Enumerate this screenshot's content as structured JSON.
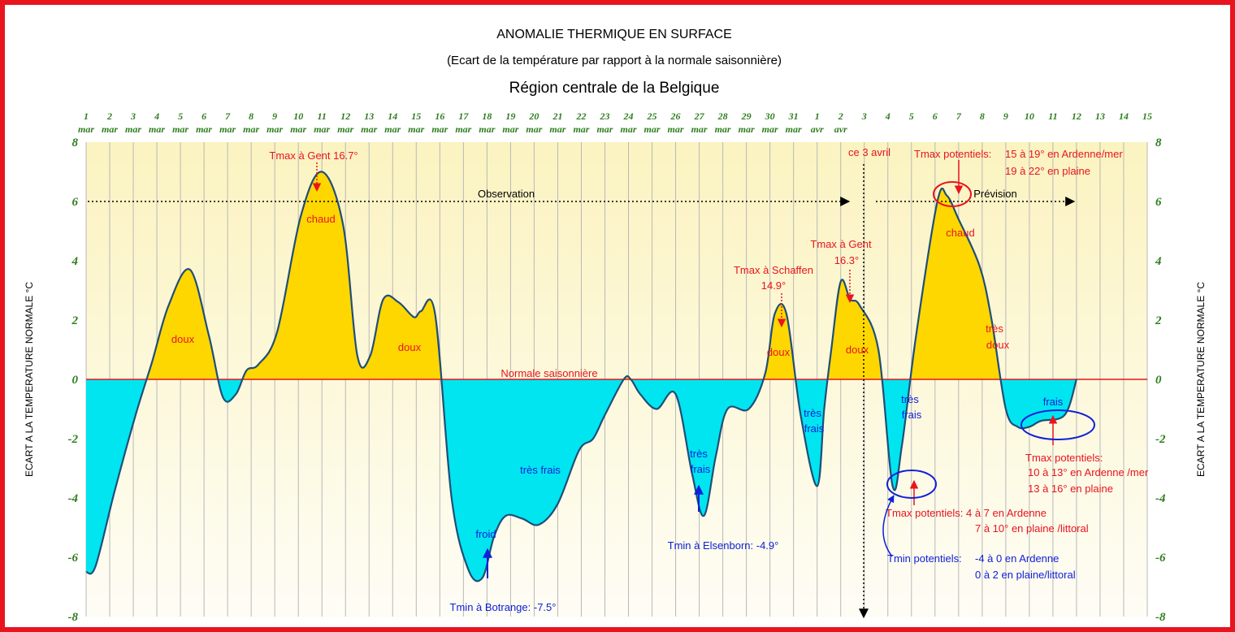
{
  "colors": {
    "frame": "#e8141e",
    "warm_fill": "#ffd700",
    "cold_fill": "#00e5f0",
    "curve": "#1f4e79",
    "plot_bg_top": "#fbf3c0",
    "plot_bg_bottom": "#fefdf5",
    "grid": "#b8b8b8",
    "axis_labels": "#2e7d1e",
    "normal_line": "#e8141e",
    "red_text": "#e8141e",
    "blue_text": "#1020d8"
  },
  "chart_data": {
    "type": "area",
    "title": "ANOMALIE THERMIQUE EN SURFACE",
    "subtitle": "(Ecart de la température par rapport à la normale saisonnière)",
    "region": "Région centrale de la Belgique",
    "ylabel": "ECART A LA TEMPERATURE NORMALE  °C",
    "ylim": [
      -8,
      8
    ],
    "yticks": [
      "8",
      "6",
      "4",
      "2",
      "0",
      "-2",
      "-4",
      "-6",
      "-8"
    ],
    "xticks": [
      {
        "day": "1",
        "month": "mar"
      },
      {
        "day": "2",
        "month": "mar"
      },
      {
        "day": "3",
        "month": "mar"
      },
      {
        "day": "4",
        "month": "mar"
      },
      {
        "day": "5",
        "month": "mar"
      },
      {
        "day": "6",
        "month": "mar"
      },
      {
        "day": "7",
        "month": "mar"
      },
      {
        "day": "8",
        "month": "mar"
      },
      {
        "day": "9",
        "month": "mar"
      },
      {
        "day": "10",
        "month": "mar"
      },
      {
        "day": "11",
        "month": "mar"
      },
      {
        "day": "12",
        "month": "mar"
      },
      {
        "day": "13",
        "month": "mar"
      },
      {
        "day": "14",
        "month": "mar"
      },
      {
        "day": "15",
        "month": "mar"
      },
      {
        "day": "16",
        "month": "mar"
      },
      {
        "day": "17",
        "month": "mar"
      },
      {
        "day": "18",
        "month": "mar"
      },
      {
        "day": "19",
        "month": "mar"
      },
      {
        "day": "20",
        "month": "mar"
      },
      {
        "day": "21",
        "month": "mar"
      },
      {
        "day": "22",
        "month": "mar"
      },
      {
        "day": "23",
        "month": "mar"
      },
      {
        "day": "24",
        "month": "mar"
      },
      {
        "day": "25",
        "month": "mar"
      },
      {
        "day": "26",
        "month": "mar"
      },
      {
        "day": "27",
        "month": "mar"
      },
      {
        "day": "28",
        "month": "mar"
      },
      {
        "day": "29",
        "month": "mar"
      },
      {
        "day": "30",
        "month": "mar"
      },
      {
        "day": "31",
        "month": "mar"
      },
      {
        "day": "1",
        "month": "avr"
      },
      {
        "day": "2",
        "month": "avr"
      },
      {
        "day": "3",
        "month": ""
      },
      {
        "day": "4",
        "month": ""
      },
      {
        "day": "5",
        "month": ""
      },
      {
        "day": "6",
        "month": ""
      },
      {
        "day": "7",
        "month": ""
      },
      {
        "day": "8",
        "month": ""
      },
      {
        "day": "9",
        "month": ""
      },
      {
        "day": "10",
        "month": ""
      },
      {
        "day": "11",
        "month": ""
      },
      {
        "day": "12",
        "month": ""
      },
      {
        "day": "13",
        "month": ""
      },
      {
        "day": "14",
        "month": ""
      },
      {
        "day": "15",
        "month": ""
      }
    ],
    "series": [
      {
        "x": [
          1,
          1.4,
          2.2,
          3.1,
          3.8,
          4.5,
          5.4,
          6.2,
          6.8,
          7.35,
          7.8,
          8.3,
          9.1,
          10.1,
          11.0,
          11.9,
          12.5,
          13.05,
          13.6,
          14.25,
          14.9,
          15.2,
          15.8,
          16.5,
          17.2,
          17.8,
          18.3,
          18.8,
          19.5,
          20.2,
          21.0,
          21.9,
          22.5,
          23.0,
          23.8,
          24.1,
          24.5,
          25.2,
          26.0,
          26.7,
          27.2,
          27.7,
          28.2,
          29.1,
          29.8,
          30.2,
          30.7,
          31.3,
          32.0,
          32.3,
          32.6,
          33.0,
          33.4,
          33.8,
          34.6,
          35.2,
          35.6,
          36.2,
          37.1,
          37.5,
          38.0,
          38.9,
          39.4,
          40.0,
          40.5,
          41.0,
          41.5,
          42.5,
          43.0
        ],
        "y": [
          -6.5,
          -6.3,
          -3.8,
          -1.2,
          0.6,
          2.5,
          3.7,
          1.5,
          -0.6,
          -0.5,
          0.3,
          0.5,
          1.6,
          5.5,
          7.0,
          5.2,
          0.8,
          0.8,
          2.7,
          2.6,
          2.1,
          2.3,
          2.2,
          -4.0,
          -6.4,
          -6.7,
          -5.3,
          -4.6,
          -4.7,
          -4.9,
          -4.2,
          -2.4,
          -2.0,
          -1.2,
          0.0,
          0.0,
          -0.5,
          -1.0,
          -0.5,
          -3.2,
          -4.6,
          -2.6,
          -1.0,
          -1.0,
          0.2,
          2.2,
          2.2,
          -1.2,
          -3.6,
          -1.0,
          1.0,
          3.3,
          2.7,
          2.5,
          1.0,
          -3.6,
          -2.2,
          1.5,
          6.0,
          6.2,
          5.4,
          3.8,
          2.0,
          -1.0,
          -1.6,
          -1.6,
          -1.4,
          -1.2,
          0.0
        ]
      }
    ],
    "normal_label": "Normale saisonnière",
    "current_day_label": "ce 3 avril",
    "observation_label": "Observation",
    "prevision_label": "Prévision",
    "annotations": {
      "tmax_gent_mar": "Tmax à Gent 16.7°",
      "chaud_1": "chaud",
      "doux_1": "doux",
      "doux_2": "doux",
      "tmax_schaffen_1": "Tmax à Schaffen",
      "tmax_schaffen_2": "14.9°",
      "doux_3": "doux",
      "tmax_gent_avr_1": "Tmax à Gent",
      "tmax_gent_avr_2": "16.3°",
      "doux_4": "doux",
      "tmax_pot_top_1": "Tmax potentiels:",
      "tmax_pot_top_2": "15 à 19° en Ardenne/mer",
      "tmax_pot_top_3": "19 à 22° en plaine",
      "chaud_2": "chaud",
      "tres_doux_1": "très",
      "tres_doux_2": "doux",
      "tres_frais_a": "très frais",
      "froid": "froid",
      "tmin_botrange": "Tmin à Botrange: -7.5°",
      "tres_frais_b1": "très",
      "tres_frais_b2": "frais",
      "tmin_elsenborn": "Tmin à Elsenborn: -4.9°",
      "tres_frais_c1": "très",
      "tres_frais_c2": "frais",
      "tres_frais_d1": "très",
      "tres_frais_d2": "frais",
      "frais": "frais",
      "tmax_pot_mid_1": "Tmax potentiels:",
      "tmax_pot_mid_2": "10 à 13° en Ardenne /mer",
      "tmax_pot_mid_3": "13 à 16° en plaine",
      "tmax_pot_low_1": "Tmax potentiels: 4 à 7 en Ardenne",
      "tmax_pot_low_2": "7 à 10° en plaine /littoral",
      "tmin_pot_1": "Tmin potentiels:",
      "tmin_pot_2": "-4 à 0 en Ardenne",
      "tmin_pot_3": "0 à 2 en plaine/littoral"
    }
  }
}
